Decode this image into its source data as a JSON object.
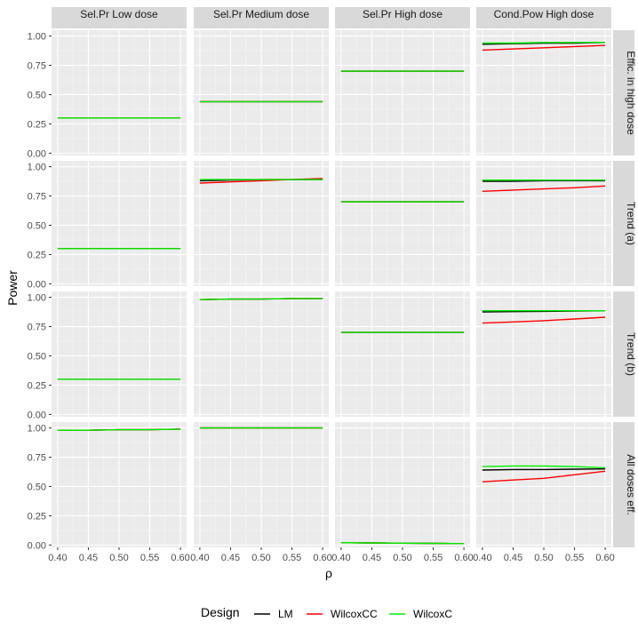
{
  "chart_data": {
    "type": "line",
    "xlabel": "ρ",
    "ylabel": "Power",
    "x": [
      0.4,
      0.45,
      0.5,
      0.55,
      0.6
    ],
    "x_tick_labels": [
      "0.40",
      "0.45",
      "0.50",
      "0.55",
      "0.60"
    ],
    "xlim": [
      0.39,
      0.61
    ],
    "ylim": [
      -0.02,
      1.05
    ],
    "y_ticks": [
      0.0,
      0.25,
      0.5,
      0.75,
      1.0
    ],
    "y_tick_labels": [
      "0.00",
      "0.25",
      "0.50",
      "0.75",
      "1.00"
    ],
    "grid": true,
    "legend_position": "bottom",
    "legend": {
      "title": "Design",
      "entries": [
        {
          "name": "LM",
          "color": "#000000"
        },
        {
          "name": "WilcoxCC",
          "color": "#ff0000"
        },
        {
          "name": "WilcoxC",
          "color": "#00ee00"
        }
      ]
    },
    "columns": [
      "Sel.Pr Low dose",
      "Sel.Pr Medium dose",
      "Sel.Pr High dose",
      "Cond.Pow High dose"
    ],
    "rows": [
      "Effic. in high dose",
      "Trend (a)",
      "Trend (b)",
      "All doses eff."
    ],
    "panels": [
      [
        {
          "LM": [
            0.3,
            0.3,
            0.3,
            0.3,
            0.3
          ],
          "WilcoxCC": [
            0.3,
            0.3,
            0.3,
            0.3,
            0.3
          ],
          "WilcoxC": [
            0.3,
            0.3,
            0.3,
            0.3,
            0.3
          ]
        },
        {
          "LM": [
            0.44,
            0.44,
            0.44,
            0.44,
            0.44
          ],
          "WilcoxCC": [
            0.44,
            0.44,
            0.44,
            0.44,
            0.44
          ],
          "WilcoxC": [
            0.44,
            0.44,
            0.44,
            0.44,
            0.44
          ]
        },
        {
          "LM": [
            0.7,
            0.7,
            0.7,
            0.7,
            0.7
          ],
          "WilcoxCC": [
            0.7,
            0.7,
            0.7,
            0.7,
            0.7
          ],
          "WilcoxC": [
            0.7,
            0.7,
            0.7,
            0.7,
            0.7
          ]
        },
        {
          "LM": [
            0.93,
            0.935,
            0.94,
            0.94,
            0.945
          ],
          "WilcoxCC": [
            0.88,
            0.89,
            0.9,
            0.91,
            0.92
          ],
          "WilcoxC": [
            0.94,
            0.94,
            0.945,
            0.945,
            0.945
          ]
        }
      ],
      [
        {
          "LM": [
            0.3,
            0.3,
            0.3,
            0.3,
            0.3
          ],
          "WilcoxCC": [
            0.3,
            0.3,
            0.3,
            0.3,
            0.3
          ],
          "WilcoxC": [
            0.3,
            0.3,
            0.3,
            0.3,
            0.3
          ]
        },
        {
          "LM": [
            0.88,
            0.885,
            0.89,
            0.89,
            0.89
          ],
          "WilcoxCC": [
            0.86,
            0.87,
            0.88,
            0.89,
            0.9
          ],
          "WilcoxC": [
            0.89,
            0.89,
            0.89,
            0.89,
            0.89
          ]
        },
        {
          "LM": [
            0.7,
            0.7,
            0.7,
            0.7,
            0.7
          ],
          "WilcoxCC": [
            0.7,
            0.7,
            0.7,
            0.7,
            0.7
          ],
          "WilcoxC": [
            0.7,
            0.7,
            0.7,
            0.7,
            0.7
          ]
        },
        {
          "LM": [
            0.875,
            0.875,
            0.88,
            0.88,
            0.88
          ],
          "WilcoxCC": [
            0.79,
            0.8,
            0.81,
            0.82,
            0.835
          ],
          "WilcoxC": [
            0.885,
            0.885,
            0.885,
            0.885,
            0.885
          ]
        }
      ],
      [
        {
          "LM": [
            0.3,
            0.3,
            0.3,
            0.3,
            0.3
          ],
          "WilcoxCC": [
            0.3,
            0.3,
            0.3,
            0.3,
            0.3
          ],
          "WilcoxC": [
            0.3,
            0.3,
            0.3,
            0.3,
            0.3
          ]
        },
        {
          "LM": [
            0.98,
            0.985,
            0.985,
            0.99,
            0.99
          ],
          "WilcoxCC": [
            0.98,
            0.985,
            0.985,
            0.99,
            0.99
          ],
          "WilcoxC": [
            0.98,
            0.985,
            0.985,
            0.99,
            0.99
          ]
        },
        {
          "LM": [
            0.7,
            0.7,
            0.7,
            0.7,
            0.7
          ],
          "WilcoxCC": [
            0.7,
            0.7,
            0.7,
            0.7,
            0.7
          ],
          "WilcoxC": [
            0.7,
            0.7,
            0.7,
            0.7,
            0.7
          ]
        },
        {
          "LM": [
            0.875,
            0.878,
            0.88,
            0.882,
            0.885
          ],
          "WilcoxCC": [
            0.78,
            0.79,
            0.8,
            0.815,
            0.83
          ],
          "WilcoxC": [
            0.885,
            0.885,
            0.885,
            0.885,
            0.885
          ]
        }
      ],
      [
        {
          "LM": [
            0.98,
            0.98,
            0.985,
            0.985,
            0.99
          ],
          "WilcoxCC": [
            0.98,
            0.98,
            0.985,
            0.985,
            0.99
          ],
          "WilcoxC": [
            0.98,
            0.98,
            0.985,
            0.985,
            0.99
          ]
        },
        {
          "LM": [
            1.0,
            1.0,
            1.0,
            1.0,
            1.0
          ],
          "WilcoxCC": [
            1.0,
            1.0,
            1.0,
            1.0,
            1.0
          ],
          "WilcoxC": [
            1.0,
            1.0,
            1.0,
            1.0,
            1.0
          ]
        },
        {
          "LM": [
            0.02,
            0.018,
            0.016,
            0.014,
            0.012
          ],
          "WilcoxCC": [
            0.02,
            0.018,
            0.016,
            0.014,
            0.012
          ],
          "WilcoxC": [
            0.02,
            0.018,
            0.016,
            0.014,
            0.012
          ]
        },
        {
          "LM": [
            0.64,
            0.645,
            0.645,
            0.648,
            0.65
          ],
          "WilcoxCC": [
            0.54,
            0.555,
            0.57,
            0.6,
            0.63
          ],
          "WilcoxC": [
            0.67,
            0.675,
            0.675,
            0.67,
            0.66
          ]
        }
      ]
    ]
  }
}
